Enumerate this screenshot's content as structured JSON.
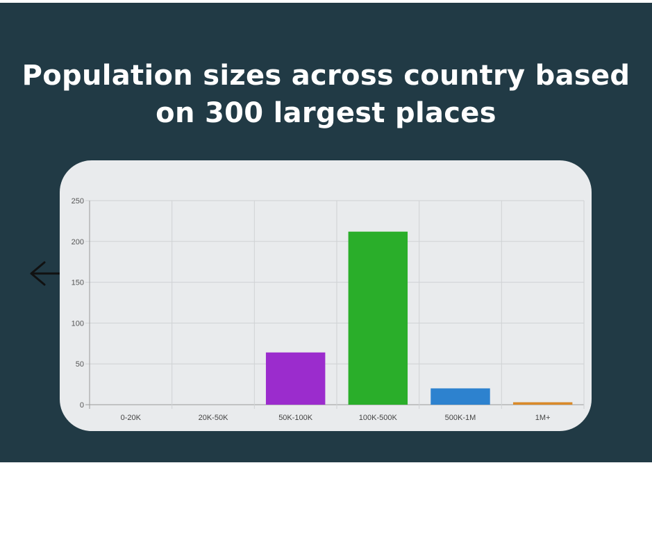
{
  "page": {
    "title": "Population sizes across country based on 300 largest places",
    "colors": {
      "panel_bg": "#213a45",
      "card_bg": "#e9ebed",
      "title_text": "#ffffff"
    }
  },
  "nav": {
    "back_icon": "arrow-left-icon"
  },
  "chart_data": {
    "type": "bar",
    "title": "",
    "xlabel": "",
    "ylabel": "",
    "categories": [
      "0-20K",
      "20K-50K",
      "50K-100K",
      "100K-500K",
      "500K-1M",
      "1M+"
    ],
    "values": [
      0,
      0,
      64,
      212,
      20,
      3
    ],
    "colors": [
      "#3b8fd6",
      "#e0463a",
      "#9b2ccd",
      "#2aae2a",
      "#2d82cf",
      "#d98a2a"
    ],
    "ylim": [
      0,
      250
    ],
    "yticks": [
      0,
      50,
      100,
      150,
      200,
      250
    ],
    "grid": true,
    "legend": "none"
  }
}
